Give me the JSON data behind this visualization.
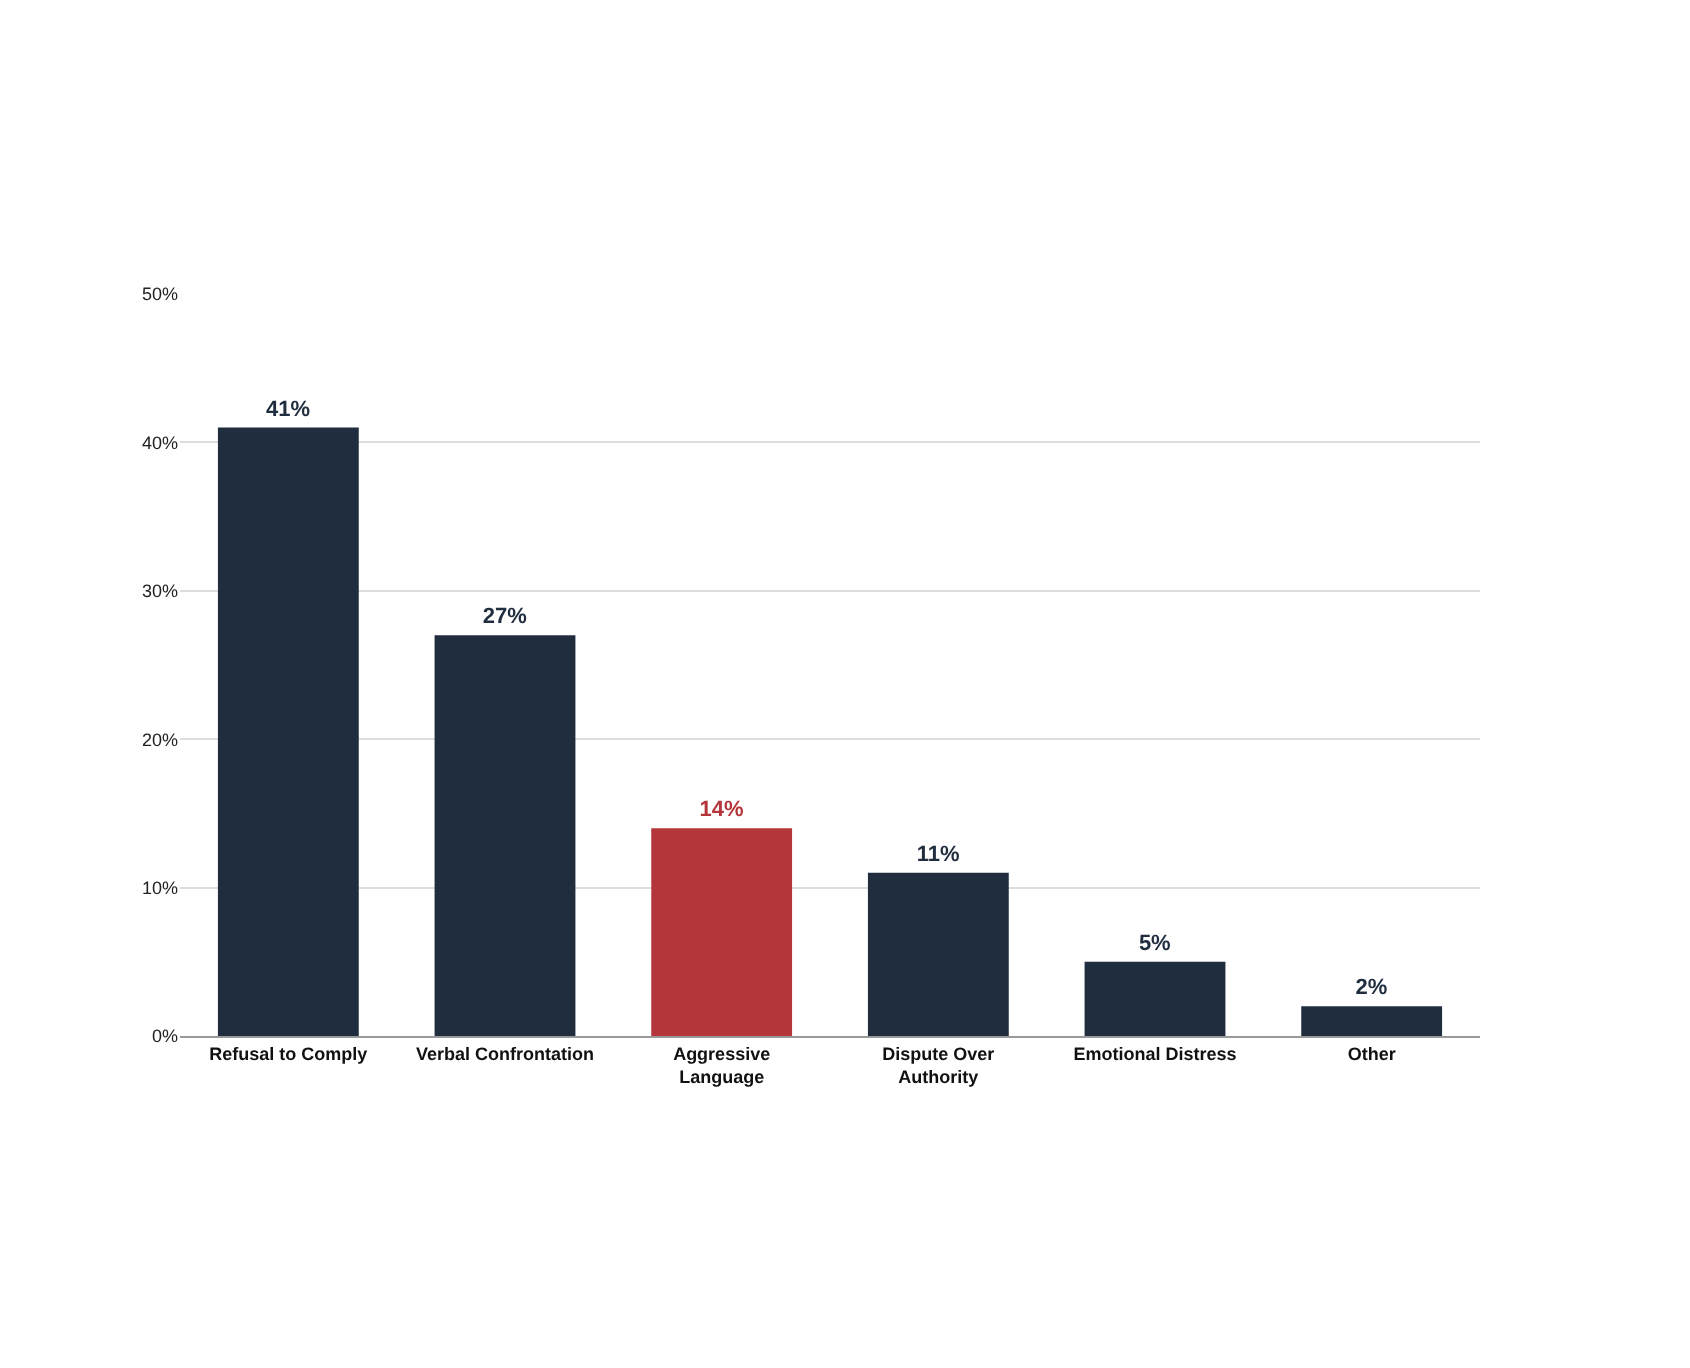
{
  "chart_data": {
    "type": "bar",
    "categories": [
      "Refusal to Comply",
      "Verbal Confrontation",
      "Aggressive\nLanguage",
      "Dispute Over\nAuthority",
      "Emotional Distress",
      "Other"
    ],
    "values": [
      41,
      27,
      14,
      11,
      5,
      2
    ],
    "colors": [
      "#1f2d3f",
      "#1f2d3f",
      "#b5363a",
      "#1f2d3f",
      "#1f2d3f",
      "#1f2d3f"
    ],
    "value_labels": [
      "41%",
      "27%",
      "14%",
      "11%",
      "5%",
      "2%"
    ],
    "ylim": [
      0,
      50
    ],
    "yticks": [
      {
        "value": 0,
        "label": "0%"
      },
      {
        "value": 10,
        "label": "10%"
      },
      {
        "value": 20,
        "label": "20%"
      },
      {
        "value": 30,
        "label": "30%"
      },
      {
        "value": 40,
        "label": "40%"
      },
      {
        "value": 50,
        "label": "50%"
      }
    ],
    "grid": "y",
    "legend": false
  }
}
